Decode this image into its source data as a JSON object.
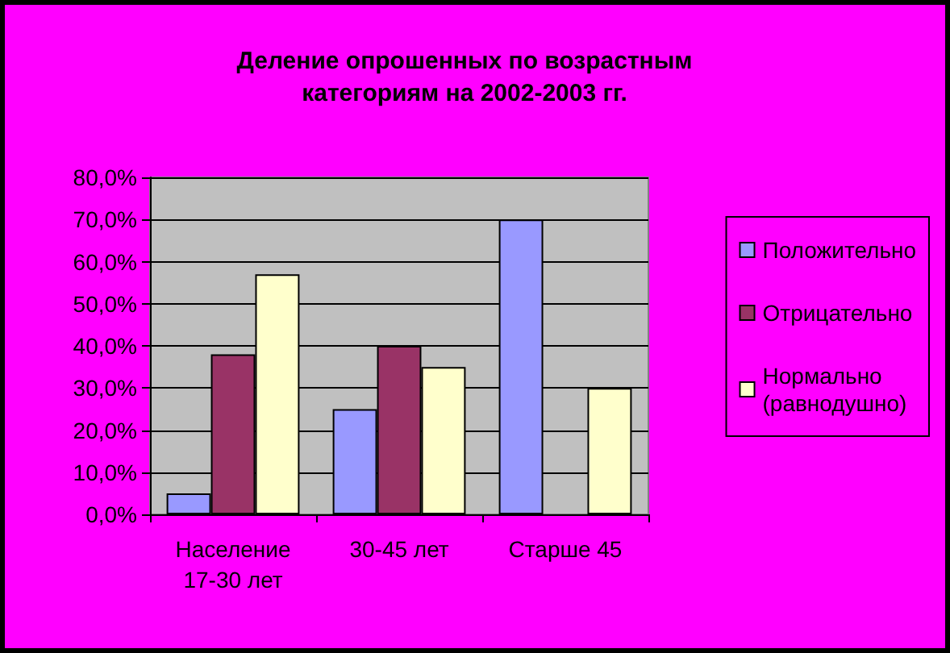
{
  "chart_data": {
    "type": "bar",
    "title": "Деление опрошенных по возрастным\nкатегориям на 2002-2003 гг.",
    "categories": [
      "Население\n17-30 лет",
      "30-45 лет",
      "Старше 45"
    ],
    "series": [
      {
        "name": "Положительно",
        "color": "#9999ff",
        "values": [
          5,
          25,
          70
        ]
      },
      {
        "name": "Отрицательно",
        "color": "#993366",
        "values": [
          38,
          40,
          null
        ]
      },
      {
        "name": "Нормально\n(равнодушно)",
        "color": "#ffffcc",
        "values": [
          57,
          35,
          30
        ]
      }
    ],
    "ylim": [
      0,
      80
    ],
    "yticks": [
      {
        "value": 0,
        "label": "0,0%"
      },
      {
        "value": 10,
        "label": "10,0%"
      },
      {
        "value": 20,
        "label": "20,0%"
      },
      {
        "value": 30,
        "label": "30,0%"
      },
      {
        "value": 40,
        "label": "40,0%"
      },
      {
        "value": 50,
        "label": "50,0%"
      },
      {
        "value": 60,
        "label": "60,0%"
      },
      {
        "value": 70,
        "label": "70,0%"
      },
      {
        "value": 80,
        "label": "80,0%"
      }
    ],
    "grid": "y",
    "legend": "right"
  }
}
